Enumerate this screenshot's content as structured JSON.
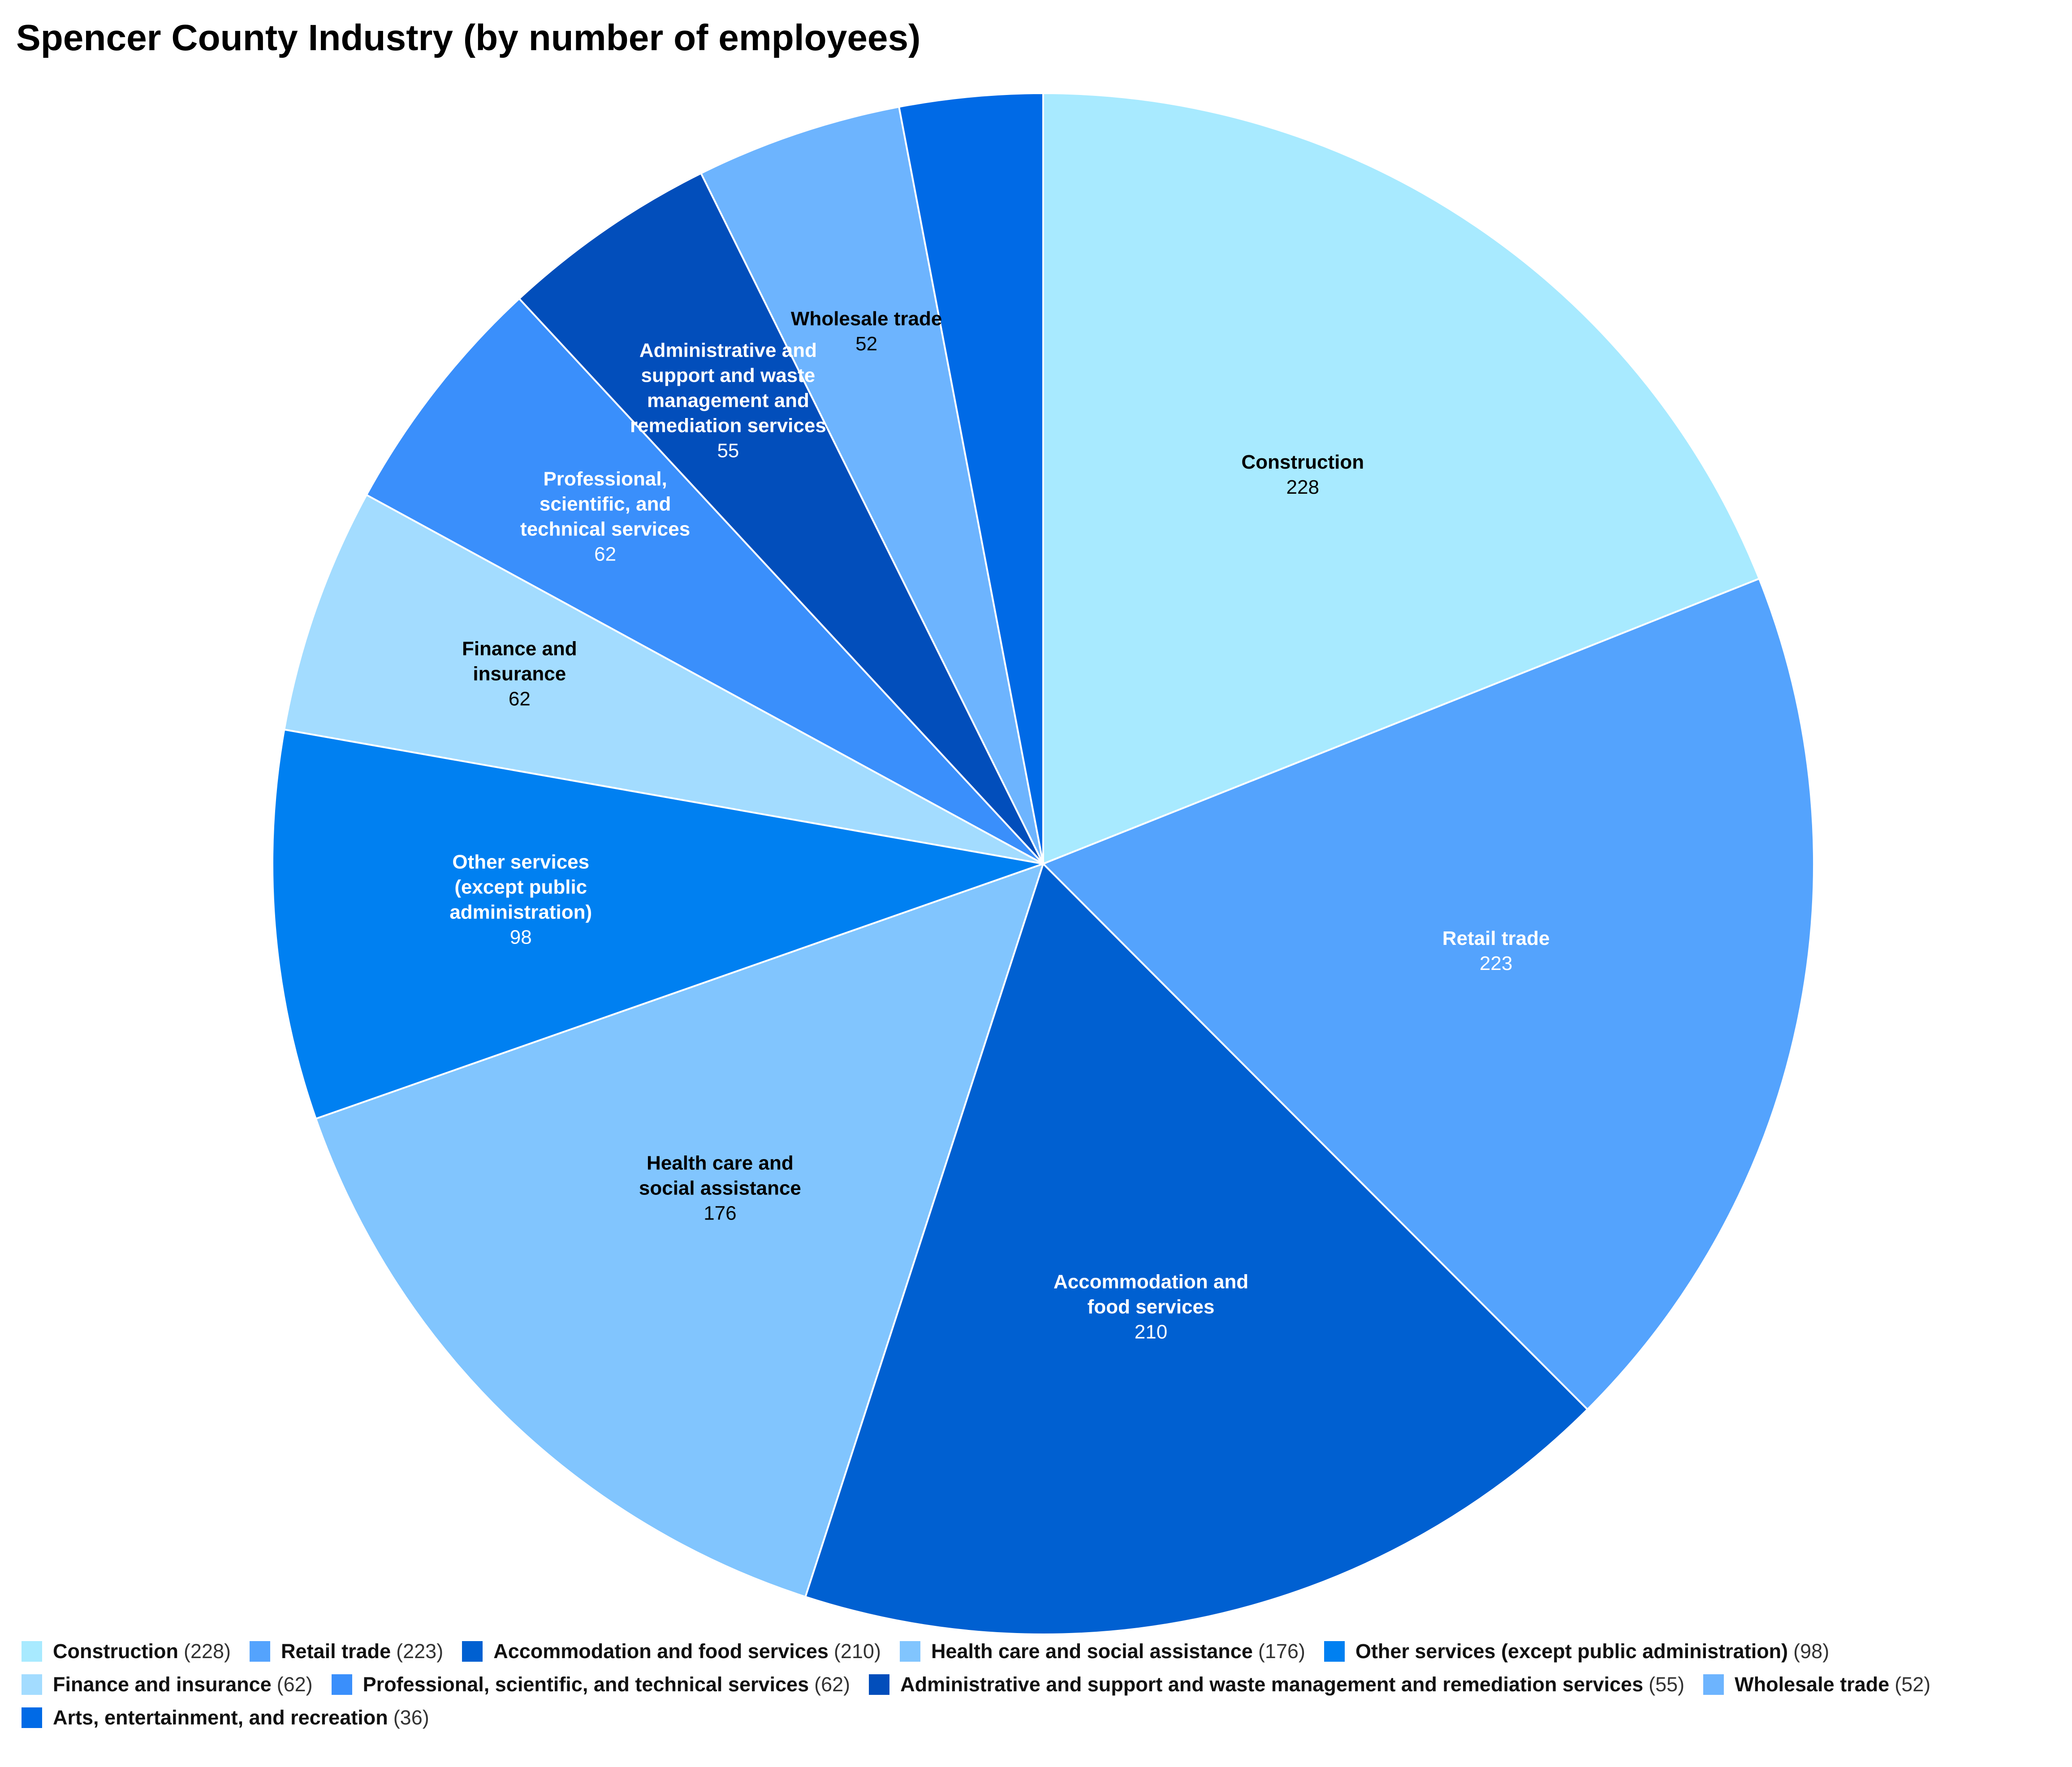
{
  "chart_data": {
    "type": "pie",
    "title": "Spencer County Industry (by number of employees)",
    "slices": [
      {
        "label": "Construction",
        "value": 228,
        "color": "#a8eaff",
        "text_color": "#000000"
      },
      {
        "label": "Retail trade",
        "value": 223,
        "color": "#54a3fd",
        "text_color": "#ffffff"
      },
      {
        "label": "Accommodation and food services",
        "value": 210,
        "color": "#0060d1",
        "text_color": "#ffffff"
      },
      {
        "label": "Health care and social assistance",
        "value": 176,
        "color": "#81c5fe",
        "text_color": "#000000"
      },
      {
        "label": "Other services (except public administration)",
        "value": 98,
        "color": "#0080f1",
        "text_color": "#ffffff"
      },
      {
        "label": "Finance and insurance",
        "value": 62,
        "color": "#a3dcff",
        "text_color": "#000000"
      },
      {
        "label": "Professional, scientific, and technical services",
        "value": 62,
        "color": "#3a8ffb",
        "text_color": "#ffffff"
      },
      {
        "label": "Administrative and support and waste management and remediation services",
        "value": 55,
        "color": "#024ebb",
        "text_color": "#ffffff"
      },
      {
        "label": "Wholesale trade",
        "value": 52,
        "color": "#6db4fe",
        "text_color": "#000000"
      },
      {
        "label": "Arts, entertainment, and recreation",
        "value": 36,
        "color": "#006ae6",
        "text_color": "#ffffff"
      }
    ],
    "start": "12 o'clock",
    "direction": "clockwise",
    "legend_position": "bottom",
    "data_labels": "name and value inside slice"
  }
}
